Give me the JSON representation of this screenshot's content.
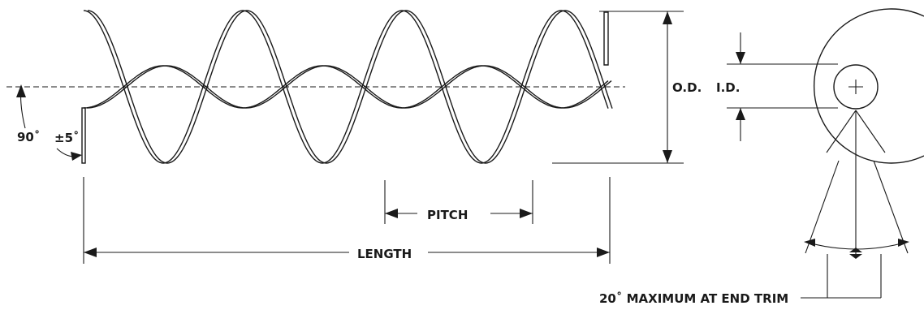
{
  "labels": {
    "od": "O.D.",
    "id": "I.D.",
    "pitch": "PITCH",
    "length": "LENGTH",
    "angle_90": "90˚",
    "tolerance": "±5˚",
    "end_trim": "20˚ MAXIMUM AT END TRIM"
  }
}
